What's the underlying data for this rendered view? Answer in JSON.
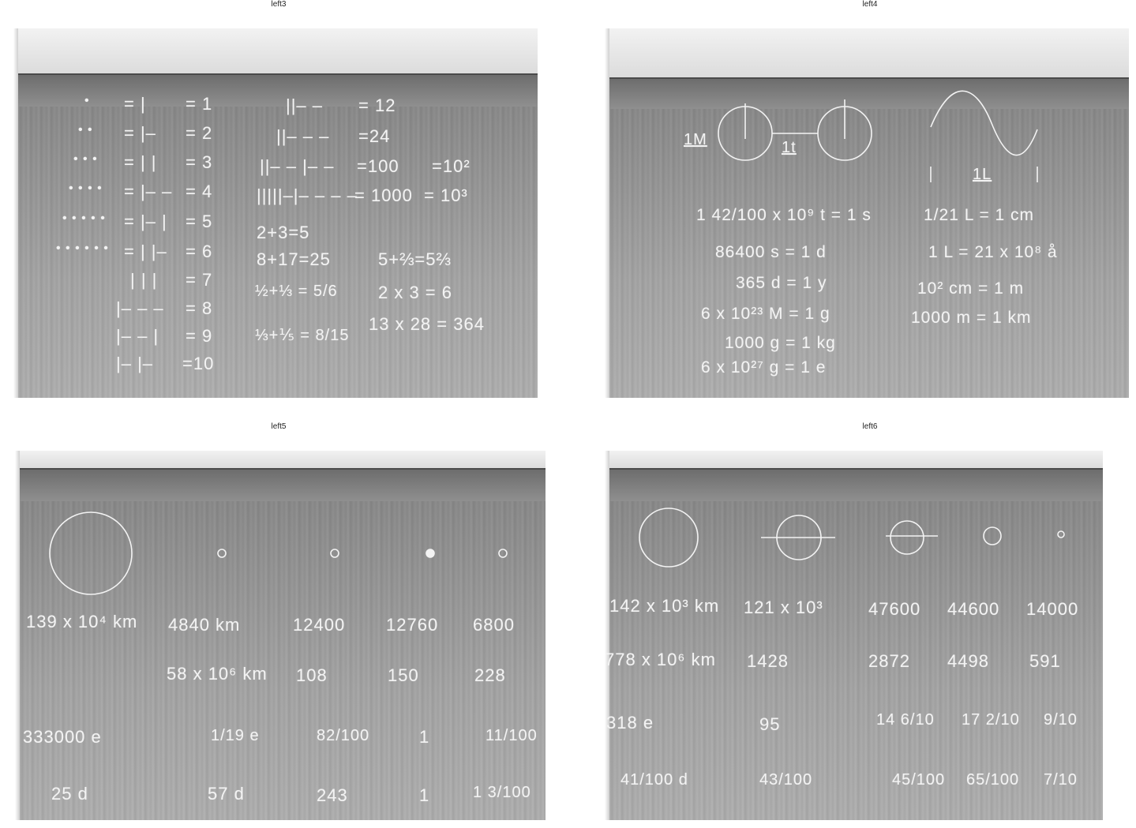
{
  "panels": [
    {
      "title": "left3",
      "rows": [
        {
          "a": "•",
          "b": "= |",
          "c": "= 1"
        },
        {
          "a": "• •",
          "b": "= |–",
          "c": "= 2"
        },
        {
          "a": "• • •",
          "b": "= | |",
          "c": "= 3"
        },
        {
          "a": "• • • •",
          "b": "= |– –",
          "c": "= 4"
        },
        {
          "a": "• • • • •",
          "b": "= |– |",
          "c": "= 5"
        },
        {
          "a": "• • • • • •",
          "b": "= | |–",
          "c": "= 6"
        }
      ],
      "extra_rows": [
        {
          "b": "| | |",
          "c": "= 7"
        },
        {
          "b": "|– – –",
          "c": "= 8"
        },
        {
          "b": "|– – |",
          "c": "= 9"
        },
        {
          "b": "|– |–",
          "c": "=10"
        }
      ],
      "col2": [
        {
          "l": "||– –",
          "r": "= 12"
        },
        {
          "l": "||– – –",
          "r": "=24"
        },
        {
          "l": "||– – |– –",
          "r": "=100",
          "p": "=10²"
        },
        {
          "l": "|||||–|– – – –",
          "r": "= 1000",
          "p": "= 10³"
        }
      ],
      "sums": [
        "2+3=5",
        "8+17=25",
        "5+⅔=5⅔",
        "½+⅓ = 5/6",
        "2 x 3 = 6",
        "⅓+⅕ = 8/15",
        "13 x 28 = 364"
      ]
    },
    {
      "title": "left4",
      "labels": {
        "m": "1M",
        "t": "1t",
        "l": "1L"
      },
      "lines_left": [
        "1 42/100 x 10⁹ t = 1 s",
        "86400 s = 1 d",
        "365 d = 1 y",
        "6 x 10²³ M = 1 g",
        "1000 g = 1 kg",
        "6 x 10²⁷ g = 1 e"
      ],
      "lines_right": [
        "1/21 L = 1 cm",
        "1 L = 21 x 10⁸ å",
        "10² cm = 1 m",
        "1000 m = 1 km"
      ]
    },
    {
      "title": "left5",
      "row1": [
        "139 x 10⁴ km",
        "4840 km",
        "12400",
        "12760",
        "6800"
      ],
      "row2": [
        "58 x 10⁶ km",
        "108",
        "150",
        "228"
      ],
      "row3": [
        "333000 e",
        "1/19 e",
        "82/100",
        "1",
        "11/100"
      ],
      "row4": [
        "25 d",
        "57 d",
        "243",
        "1",
        "1 3/100"
      ]
    },
    {
      "title": "left6",
      "row1": [
        "142 x 10³ km",
        "121 x 10³",
        "47600",
        "44600",
        "14000"
      ],
      "row2": [
        "778 x 10⁶ km",
        "1428",
        "2872",
        "4498",
        "591"
      ],
      "row3": [
        "318 e",
        "95",
        "14 6/10",
        "17 2/10",
        "9/10"
      ],
      "row4": [
        "41/100 d",
        "43/100",
        "45/100",
        "65/100",
        "7/10"
      ]
    }
  ]
}
